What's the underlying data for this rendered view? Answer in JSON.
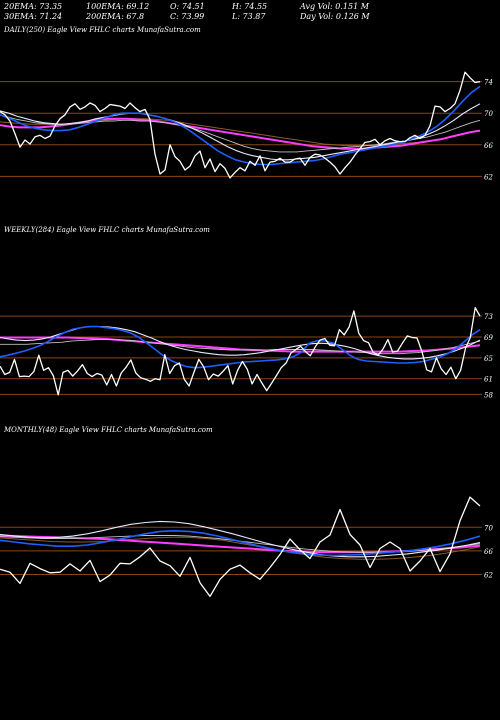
{
  "header": {
    "ema20": "20EMA: 73.35",
    "ema100": "100EMA: 69.12",
    "open": "O: 74.51",
    "high": "H: 74.55",
    "avgvol": "Avg Vol: 0.151  M",
    "ema30": "30EMA: 71.24",
    "ema200": "200EMA: 67.8",
    "close": "C: 73.99",
    "low": "L: 73.87",
    "dayvol": "Day Vol: 0.126  M"
  },
  "colors": {
    "price": "#ffffff",
    "ema20": "#1e5fff",
    "ema30": "#e8e8ff",
    "ema100": "#c0c0c0",
    "ema200": "#ff3cff",
    "ma_brown": "#8b5a2b",
    "grid": "#8b4513"
  },
  "chart_data": [
    {
      "type": "line",
      "label": "DAILY(250) Eagle  View  FHLC charts MunafaSutra.com",
      "ylim": [
        59,
        77
      ],
      "yticks": [
        62,
        66,
        70,
        74
      ],
      "series": [
        {
          "values": [
            70.2,
            69.8,
            69.0,
            67.4,
            65.7,
            66.6,
            66.1,
            67.0,
            67.2,
            66.8,
            67.1,
            68.4,
            69.3,
            69.8,
            70.8,
            71.2,
            70.5,
            70.8,
            71.3,
            71.0,
            70.2,
            70.6,
            71.1,
            71.0,
            70.9,
            70.6,
            71.3,
            70.7,
            70.2,
            70.5,
            69.2,
            64.8,
            62.3,
            62.8,
            66.0,
            64.5,
            63.9,
            62.8,
            63.3,
            64.6,
            65.2,
            63.1,
            64.2,
            62.6,
            63.6,
            63.0,
            61.8,
            62.5,
            63.1,
            62.7,
            63.9,
            63.4,
            64.6,
            62.7,
            63.8,
            63.9,
            64.3,
            63.8,
            63.8,
            64.2,
            64.3,
            63.4,
            64.4,
            64.8,
            64.7,
            64.3,
            63.8,
            63.2,
            62.3,
            63.1,
            63.8,
            64.7,
            65.5,
            66.3,
            66.4,
            66.7,
            66.0,
            66.5,
            66.8,
            66.5,
            66.4,
            66.4,
            66.9,
            67.2,
            66.8,
            67.2,
            68.4,
            70.9,
            70.8,
            70.2,
            70.6,
            71.2,
            72.9,
            75.2,
            74.5,
            73.9,
            74.0
          ]
        },
        {
          "values": [
            69.8,
            69.4,
            68.9,
            68.4,
            68.1,
            67.9,
            67.8,
            67.8,
            67.9,
            68.2,
            68.6,
            69.0,
            69.4,
            69.8,
            70.0,
            70.0,
            70.0,
            69.8,
            69.6,
            69.3,
            68.9,
            68.3,
            67.6,
            66.8,
            66.0,
            65.2,
            64.6,
            64.1,
            63.8,
            63.6,
            63.5,
            63.5,
            63.6,
            63.7,
            63.8,
            63.9,
            64.0,
            64.2,
            64.5,
            64.8,
            65.0,
            65.2,
            65.4,
            65.6,
            65.8,
            66.0,
            66.3,
            66.7,
            67.1,
            67.6,
            68.3,
            69.2,
            70.3,
            71.5,
            72.6,
            73.4
          ]
        },
        {
          "values": [
            70.3,
            70.0,
            69.6,
            69.3,
            69.0,
            68.8,
            68.7,
            68.6,
            68.7,
            68.8,
            69.0,
            69.3,
            69.5,
            69.7,
            69.9,
            70.0,
            70.0,
            69.8,
            69.6,
            69.3,
            69.0,
            68.6,
            68.1,
            67.6,
            67.0,
            66.4,
            65.8,
            65.3,
            64.9,
            64.6,
            64.4,
            64.2,
            64.1,
            64.1,
            64.2,
            64.3,
            64.4,
            64.6,
            64.8,
            65.0,
            65.2,
            65.4,
            65.6,
            65.8,
            66.0,
            66.2,
            66.4,
            66.6,
            66.9,
            67.3,
            67.8,
            68.4,
            69.1,
            69.9,
            70.6,
            71.2
          ]
        },
        {
          "values": [
            69.8,
            69.5,
            69.2,
            69.0,
            68.8,
            68.7,
            68.6,
            68.6,
            68.6,
            68.7,
            68.8,
            68.9,
            69.0,
            69.0,
            69.1,
            69.1,
            69.0,
            69.0,
            68.9,
            68.8,
            68.6,
            68.4,
            68.1,
            67.8,
            67.4,
            67.0,
            66.6,
            66.2,
            65.8,
            65.5,
            65.3,
            65.2,
            65.1,
            65.1,
            65.1,
            65.2,
            65.3,
            65.4,
            65.5,
            65.6,
            65.7,
            65.8,
            65.9,
            66.0,
            66.1,
            66.3,
            66.4,
            66.6,
            66.8,
            67.0,
            67.3,
            67.6,
            68.0,
            68.4,
            68.8,
            69.1
          ]
        },
        {
          "values": [
            68.5,
            68.3,
            68.2,
            68.2,
            68.2,
            68.3,
            68.4,
            68.6,
            68.8,
            69.0,
            69.2,
            69.3,
            69.3,
            69.3,
            69.2,
            69.1,
            69.0,
            68.8,
            68.6,
            68.4,
            68.2,
            68.0,
            67.8,
            67.6,
            67.4,
            67.2,
            67.0,
            66.8,
            66.6,
            66.4,
            66.2,
            66.0,
            65.8,
            65.7,
            65.6,
            65.5,
            65.5,
            65.5,
            65.6,
            65.7,
            65.8,
            65.9,
            66.1,
            66.3,
            66.5,
            66.7,
            67.0,
            67.3,
            67.6,
            67.8
          ]
        },
        {
          "values": [
            68.9,
            68.8,
            68.7,
            68.6,
            68.6,
            68.6,
            68.6,
            68.7,
            68.8,
            68.9,
            69.1,
            69.2,
            69.3,
            69.3,
            69.3,
            69.2,
            69.1,
            68.9,
            68.7,
            68.5,
            68.3,
            68.1,
            67.9,
            67.7,
            67.5,
            67.3,
            67.1,
            66.9,
            66.7,
            66.5,
            66.3,
            66.1,
            66.0,
            65.9,
            65.9,
            65.9,
            65.9,
            66.0,
            66.1,
            66.2,
            66.3,
            66.5,
            66.7,
            66.9,
            67.2,
            67.5,
            67.8
          ]
        }
      ]
    },
    {
      "type": "line",
      "label": "WEEKLY(284) Eagle  View  FHLC charts MunafaSutra.com",
      "ylim": [
        55,
        78
      ],
      "yticks": [
        58,
        61,
        65,
        69,
        73
      ],
      "series": [
        {
          "values": [
            63.4,
            61.8,
            62.2,
            64.7,
            61.4,
            61.5,
            61.4,
            62.4,
            65.5,
            62.6,
            63.1,
            61.6,
            57.9,
            62.2,
            62.6,
            61.5,
            62.5,
            63.7,
            62.0,
            61.4,
            62.0,
            61.7,
            59.8,
            61.8,
            59.6,
            62.1,
            63.2,
            64.6,
            62.1,
            61.2,
            60.9,
            60.5,
            61.0,
            60.8,
            65.6,
            62.0,
            63.5,
            64.0,
            60.9,
            59.6,
            62.2,
            64.7,
            63.3,
            60.8,
            61.9,
            61.5,
            62.4,
            63.5,
            60.0,
            62.6,
            64.3,
            62.8,
            60.0,
            61.8,
            60.2,
            58.7,
            60.1,
            61.6,
            63.1,
            64.0,
            65.9,
            66.6,
            67.2,
            66.2,
            65.4,
            67.1,
            68.4,
            68.7,
            67.4,
            67.3,
            70.4,
            69.4,
            70.9,
            74.0,
            69.7,
            68.3,
            67.9,
            66.0,
            65.5,
            66.7,
            68.5,
            66.1,
            66.3,
            67.8,
            69.2,
            68.9,
            68.8,
            66.3,
            62.7,
            62.3,
            65.0,
            62.9,
            61.8,
            63.2,
            61.0,
            62.6,
            66.8,
            68.9,
            74.6,
            73.0
          ]
        },
        {
          "values": [
            65.2,
            65.5,
            65.9,
            66.3,
            66.8,
            67.4,
            68.2,
            69.1,
            69.9,
            70.5,
            70.8,
            71.0,
            71.0,
            70.8,
            70.6,
            70.3,
            69.8,
            69.0,
            67.9,
            66.7,
            65.5,
            64.5,
            63.8,
            63.3,
            63.1,
            63.2,
            63.4,
            63.6,
            63.8,
            64.0,
            64.2,
            64.3,
            64.4,
            64.5,
            64.6,
            64.8,
            65.2,
            66.0,
            67.8,
            68.3,
            68.2,
            67.8,
            66.7,
            65.5,
            64.7,
            64.4,
            64.3,
            64.2,
            64.1,
            64.0,
            64.0,
            64.1,
            64.3,
            64.7,
            65.1,
            65.8,
            66.7,
            68.0,
            69.4,
            70.4
          ]
        },
        {
          "values": [
            68.9,
            68.6,
            68.4,
            68.3,
            68.4,
            68.6,
            69.0,
            69.5,
            70.0,
            70.5,
            70.9,
            71.0,
            71.0,
            70.9,
            70.7,
            70.4,
            70.0,
            69.4,
            68.8,
            68.1,
            67.5,
            67.0,
            66.6,
            66.3,
            66.0,
            65.8,
            65.6,
            65.5,
            65.5,
            65.6,
            65.8,
            66.0,
            66.3,
            66.6,
            66.9,
            67.2,
            67.5,
            67.7,
            67.8,
            67.7,
            67.5,
            67.2,
            66.8,
            66.3,
            65.8,
            65.4,
            65.1,
            64.9,
            64.8,
            64.8,
            64.9,
            65.1,
            65.4,
            65.8,
            66.3,
            66.9,
            67.6,
            68.4
          ]
        },
        {
          "values": [
            67.6,
            67.6,
            67.6,
            67.6,
            67.7,
            67.8,
            67.9,
            68.0,
            68.2,
            68.3,
            68.4,
            68.5,
            68.5,
            68.5,
            68.4,
            68.3,
            68.1,
            67.9,
            67.7,
            67.5,
            67.3,
            67.1,
            66.9,
            66.8,
            66.7,
            66.6,
            66.5,
            66.5,
            66.5,
            66.5,
            66.5,
            66.6,
            66.6,
            66.6,
            66.6,
            66.6,
            66.5,
            66.4,
            66.3,
            66.2,
            66.1,
            66.0,
            65.9,
            65.8,
            65.8,
            65.8,
            65.9,
            66.0,
            66.2,
            66.4,
            66.7,
            67.0,
            67.4,
            67.8,
            68.2
          ]
        },
        {
          "values": [
            68.9,
            68.9,
            68.9,
            68.9,
            68.9,
            68.9,
            68.8,
            68.7,
            68.6,
            68.4,
            68.2,
            68.0,
            67.8,
            67.6,
            67.4,
            67.2,
            67.0,
            66.8,
            66.6,
            66.5,
            66.4,
            66.3,
            66.2,
            66.2,
            66.2,
            66.2,
            66.2,
            66.2,
            66.2,
            66.2,
            66.2,
            66.3,
            66.4,
            66.6,
            66.8,
            67.1,
            67.4
          ]
        }
      ]
    },
    {
      "type": "line",
      "label": "MONTHLY(48) Eagle  View  FHLC charts MunafaSutra.com",
      "ylim": [
        56,
        78
      ],
      "yticks": [
        62,
        66,
        70
      ],
      "series": [
        {
          "values": [
            62.9,
            62.4,
            60.5,
            63.9,
            63.0,
            62.3,
            62.4,
            63.8,
            62.6,
            64.4,
            60.8,
            61.9,
            63.9,
            63.8,
            65.0,
            66.5,
            64.3,
            63.5,
            61.7,
            64.9,
            60.6,
            58.3,
            61.2,
            62.9,
            63.6,
            62.3,
            61.2,
            63.2,
            65.4,
            68.0,
            66.2,
            64.7,
            67.5,
            68.7,
            73.0,
            68.8,
            67.0,
            63.2,
            66.4,
            67.5,
            66.4,
            62.6,
            64.3,
            66.4,
            62.5,
            65.5,
            71.1,
            75.1,
            73.6
          ]
        },
        {
          "values": [
            67.8,
            67.5,
            67.2,
            67.0,
            66.8,
            66.8,
            67.0,
            67.4,
            67.9,
            68.4,
            68.9,
            69.3,
            69.4,
            69.3,
            69.0,
            68.5,
            67.9,
            67.3,
            66.7,
            66.2,
            65.8,
            65.5,
            65.3,
            65.2,
            65.3,
            65.4,
            65.6,
            65.8,
            66.0,
            66.3,
            66.7,
            67.2,
            67.8,
            68.5
          ]
        },
        {
          "values": [
            68.8,
            68.5,
            68.3,
            68.2,
            68.3,
            68.5,
            68.9,
            69.4,
            70.0,
            70.5,
            70.8,
            71.0,
            70.9,
            70.6,
            70.1,
            69.5,
            68.9,
            68.2,
            67.5,
            66.9,
            66.3,
            65.8,
            65.4,
            65.1,
            65.0,
            65.0,
            65.1,
            65.3,
            65.5,
            65.8,
            66.1,
            66.5,
            66.9,
            67.4
          ]
        },
        {
          "values": [
            68.4,
            68.3,
            68.2,
            68.1,
            68.1,
            68.1,
            68.2,
            68.3,
            68.4,
            68.5,
            68.6,
            68.6,
            68.6,
            68.5,
            68.3,
            68.1,
            67.8,
            67.5,
            67.2,
            66.9,
            66.6,
            66.3,
            66.1,
            65.9,
            65.8,
            65.7,
            65.7,
            65.8,
            65.9,
            66.1,
            66.3,
            66.6,
            66.9,
            67.2
          ]
        },
        {
          "values": [
            68.6,
            68.5,
            68.4,
            68.3,
            68.2,
            68.1,
            68.0,
            67.8,
            67.6,
            67.4,
            67.2,
            67.0,
            66.8,
            66.6,
            66.4,
            66.2,
            66.0,
            65.9,
            65.8,
            65.8,
            65.8,
            65.8,
            65.9,
            66.0,
            66.2,
            66.4,
            66.6,
            66.9
          ]
        },
        {
          "values": [
            68.2,
            68.0,
            67.8,
            67.6,
            67.5,
            67.5,
            67.6,
            67.8,
            68.0,
            68.2,
            68.3,
            68.3,
            68.1,
            67.8,
            67.3,
            66.8,
            66.2,
            65.7,
            65.3,
            64.9,
            64.7,
            64.6,
            64.6,
            64.7,
            64.9,
            65.2,
            65.6,
            66.1,
            66.7
          ]
        }
      ]
    }
  ]
}
